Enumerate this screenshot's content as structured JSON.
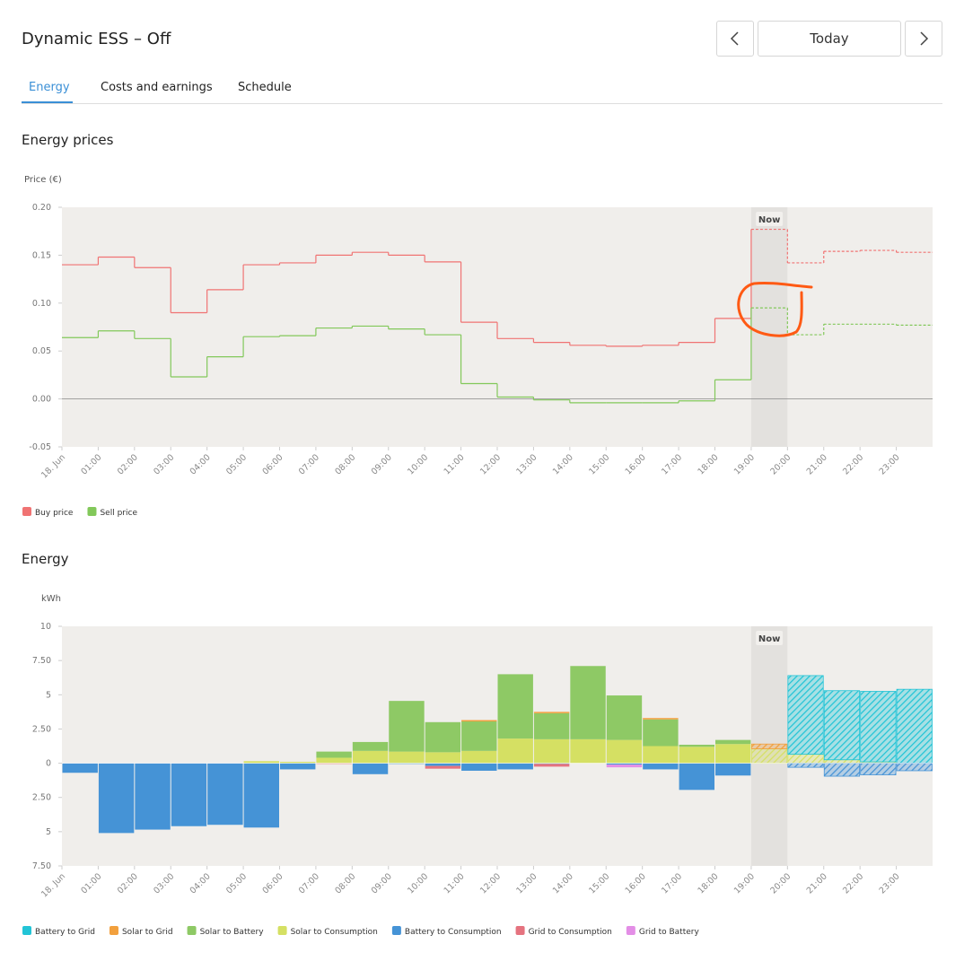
{
  "header": {
    "title": "Dynamic ESS – Off",
    "date_button": "Today"
  },
  "tabs": [
    "Energy",
    "Costs and earnings",
    "Schedule"
  ],
  "chart_data": [
    {
      "type": "line",
      "line_style": "step",
      "title": "Energy prices",
      "y_label": "Price (€)",
      "categories": [
        "18. Jun",
        "01:00",
        "02:00",
        "03:00",
        "04:00",
        "05:00",
        "06:00",
        "07:00",
        "08:00",
        "09:00",
        "10:00",
        "11:00",
        "12:00",
        "13:00",
        "14:00",
        "15:00",
        "16:00",
        "17:00",
        "18:00",
        "19:00",
        "20:00",
        "21:00",
        "22:00",
        "23:00"
      ],
      "series": [
        {
          "name": "Buy price",
          "color": "#f07373",
          "values": [
            0.14,
            0.148,
            0.137,
            0.09,
            0.114,
            0.14,
            0.142,
            0.15,
            0.153,
            0.15,
            0.143,
            0.08,
            0.063,
            0.059,
            0.056,
            0.055,
            0.056,
            0.059,
            0.084,
            0.177,
            0.142,
            0.154,
            0.155,
            0.153
          ]
        },
        {
          "name": "Sell price",
          "color": "#82c85a",
          "values": [
            0.064,
            0.071,
            0.063,
            0.023,
            0.044,
            0.065,
            0.066,
            0.074,
            0.076,
            0.073,
            0.067,
            0.016,
            0.002,
            -0.001,
            -0.004,
            -0.004,
            -0.004,
            -0.002,
            0.02,
            0.095,
            0.067,
            0.078,
            0.078,
            0.077
          ]
        }
      ],
      "ylim": [
        -0.05,
        0.2
      ],
      "yticks": [
        {
          "value": 0.2,
          "label": "0.20"
        },
        0.15,
        {
          "value": 0.1,
          "label": "0.10"
        },
        0.05,
        {
          "value": 0,
          "label": "0.00"
        },
        -0.05
      ],
      "highlight": {
        "label": "Now",
        "category": "19:00"
      }
    },
    {
      "type": "bar",
      "stacked": true,
      "title": "Energy",
      "y_label": "kWh",
      "categories": [
        "18. Jun",
        "01:00",
        "02:00",
        "03:00",
        "04:00",
        "05:00",
        "06:00",
        "07:00",
        "08:00",
        "09:00",
        "10:00",
        "11:00",
        "12:00",
        "13:00",
        "14:00",
        "15:00",
        "16:00",
        "17:00",
        "18:00",
        "19:00",
        "20:00",
        "21:00",
        "22:00",
        "23:00"
      ],
      "series": [
        {
          "name": "Battery to Grid",
          "color": "#22c4d6",
          "values": [
            0,
            0,
            0,
            0,
            0,
            0,
            0,
            0,
            0,
            0,
            0,
            0,
            0,
            0,
            0,
            0,
            0,
            0,
            0,
            0,
            5.75,
            5.05,
            5.15,
            5.4
          ]
        },
        {
          "name": "Solar to Grid",
          "color": "#f2a03d",
          "values": [
            0,
            0,
            0,
            0,
            0,
            0,
            0,
            0,
            0,
            0,
            0,
            0.1,
            0,
            0.1,
            0,
            0,
            0.1,
            0,
            0,
            0.35,
            0,
            0,
            0,
            0
          ]
        },
        {
          "name": "Solar to Battery",
          "color": "#8ec965",
          "values": [
            0,
            0,
            0,
            0,
            0,
            0,
            0,
            0.45,
            0.65,
            3.7,
            2.2,
            2.15,
            4.7,
            1.9,
            5.35,
            3.25,
            1.95,
            0.15,
            0.3,
            0,
            0,
            0,
            0,
            0
          ]
        },
        {
          "name": "Solar to Consumption",
          "color": "#d5e063",
          "values": [
            0,
            0,
            0,
            0,
            0,
            0.15,
            0.1,
            0.4,
            0.9,
            0.85,
            0.8,
            0.9,
            1.8,
            1.75,
            1.75,
            1.7,
            1.25,
            1.2,
            1.4,
            1.05,
            0.65,
            0.25,
            0.1,
            0
          ]
        },
        {
          "name": "Battery to Consumption",
          "color": "#4593d6",
          "values": [
            -0.7,
            -5.1,
            -4.85,
            -4.6,
            -4.5,
            -4.7,
            -0.45,
            0,
            -0.8,
            -0.05,
            -0.2,
            -0.55,
            -0.45,
            -0.05,
            0,
            -0.1,
            -0.45,
            -1.95,
            -0.9,
            0,
            -0.3,
            -0.95,
            -0.85,
            -0.55
          ]
        },
        {
          "name": "Grid to Consumption",
          "color": "#e5737f",
          "values": [
            0,
            0,
            0,
            0,
            0,
            0,
            0,
            -0.05,
            0,
            0,
            -0.2,
            0,
            0,
            -0.2,
            0,
            0,
            0,
            0,
            0,
            0,
            0,
            0,
            0,
            0
          ]
        },
        {
          "name": "Grid to Battery",
          "color": "#e38ee6",
          "values": [
            0,
            0,
            0,
            0,
            0,
            0,
            0,
            0,
            0,
            0,
            0,
            0,
            0,
            0,
            0,
            -0.2,
            0,
            0,
            0,
            0,
            0,
            0,
            0,
            0
          ]
        }
      ],
      "ylim": [
        -7.5,
        10
      ],
      "yticks": [
        10,
        {
          "value": 7.5,
          "label": "7.50"
        },
        5,
        {
          "value": 2.5,
          "label": "2.50"
        },
        0,
        {
          "value": -2.5,
          "label": "2.50"
        },
        {
          "value": -5,
          "label": "5"
        },
        {
          "value": -7.5,
          "label": "7.50"
        }
      ],
      "highlight": {
        "label": "Now",
        "category": "19:00"
      }
    }
  ]
}
